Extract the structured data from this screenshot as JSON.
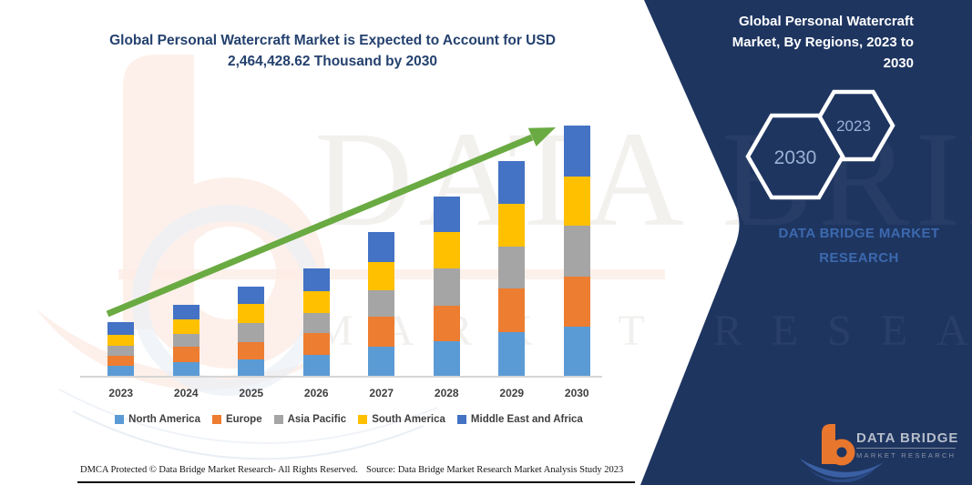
{
  "title": {
    "line1": "Global Personal Watercraft Market is Expected to Account for",
    "line2": "USD 2,464,428.62 Thousand by 2030"
  },
  "panel": {
    "title_lines": [
      "Global Personal Watercraft",
      "Market, By Regions, 2023 to",
      "2030"
    ],
    "hexagons": [
      {
        "label": "2030"
      },
      {
        "label": "2023"
      }
    ],
    "brand_line1": "DATA BRIDGE MARKET",
    "brand_line2": "RESEARCH",
    "background_color": "#1e3560"
  },
  "watermark": {
    "row1": "DATA BRIDGE",
    "row2": "MARKET RESEARCH"
  },
  "chart_data": {
    "type": "bar",
    "subtype": "stacked-vertical",
    "title": "Global Personal Watercraft Market is Expected to Account for USD 2,464,428.62 Thousand by 2030",
    "unit": "USD Thousand",
    "values_estimated_from_pixels": true,
    "anchor_note": "2030 total anchored to USD 2,464,428.62 Thousand from title; per-segment values estimated from bar heights",
    "categories": [
      "2023",
      "2024",
      "2025",
      "2026",
      "2027",
      "2028",
      "2029",
      "2030"
    ],
    "series": [
      {
        "name": "North America",
        "color": "#5b9bd5",
        "values": [
          95900,
          131700,
          164000,
          203400,
          284100,
          343200,
          430200,
          483900
        ]
      },
      {
        "name": "Europe",
        "color": "#ed7d31",
        "values": [
          104900,
          152300,
          167600,
          215100,
          298400,
          346800,
          432800,
          492900
        ]
      },
      {
        "name": "Asia Pacific",
        "color": "#a5a5a5",
        "values": [
          95900,
          125500,
          190900,
          203400,
          257200,
          370100,
          406000,
          499200
        ]
      },
      {
        "name": "South America",
        "color": "#ffc000",
        "values": [
          104900,
          149700,
          188200,
          215100,
          280500,
          358500,
          423900,
          486600
        ]
      },
      {
        "name": "Middle East and Africa",
        "color": "#4472c4",
        "values": [
          127300,
          139800,
          167600,
          220500,
          295700,
          346800,
          422100,
          501828.62
        ]
      }
    ],
    "totals": [
      528900,
      699000,
      878300,
      1057500,
      1415900,
      1765400,
      2115000,
      2464428.62
    ],
    "legend_position": "bottom",
    "grid": false,
    "y_axis_shown": false,
    "trend_arrow_color": "#6aaa42",
    "axis_line_color": "#d5d5d5"
  },
  "footer": {
    "dmca": "DMCA Protected © Data Bridge Market Research-  All Rights Reserved.",
    "source": "Source: Data Bridge Market Research  Market Analysis Study 2023"
  },
  "logo": {
    "name": "DATA BRIDGE",
    "tagline": "MARKET RESEARCH"
  }
}
